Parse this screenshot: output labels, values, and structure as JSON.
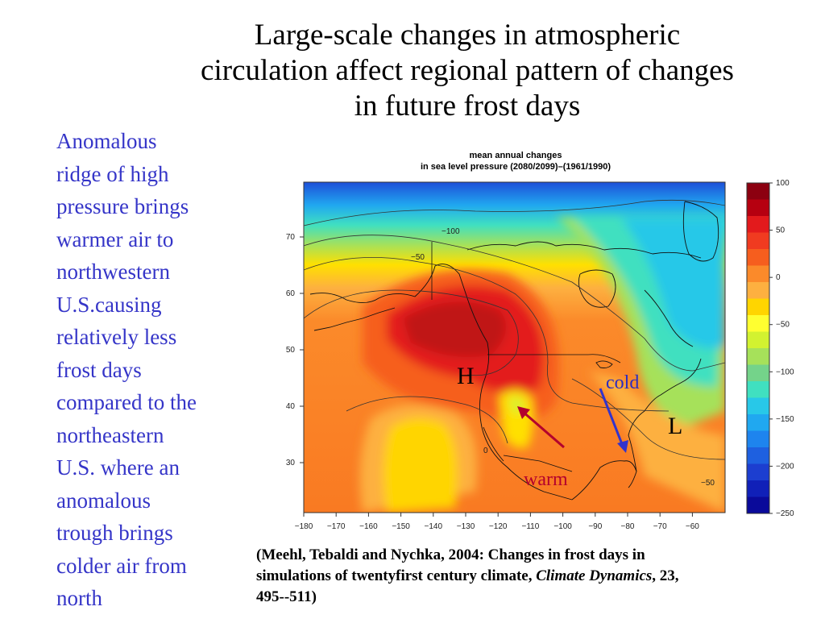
{
  "slide": {
    "title_lines": [
      "Large-scale changes in atmospheric",
      "circulation affect regional pattern of changes",
      "in future frost days"
    ],
    "side_text_lines": [
      "Anomalous",
      "ridge of high",
      "pressure brings",
      "warmer air to",
      "northwestern",
      "U.S.causing",
      "relatively less",
      "frost days",
      "compared to the",
      "northeastern",
      "U.S. where an",
      "anomalous",
      "trough brings",
      "colder air from",
      "north"
    ],
    "citation": {
      "line1": "(Meehl, Tebaldi and Nychka, 2004:  Changes in frost days in",
      "line2_prefix": "simulations of twentyfirst century climate, ",
      "journal": "Climate Dynamics",
      "line2_suffix": ", 23,",
      "line3": "495--511)"
    }
  },
  "map": {
    "title_line1": "mean annual changes",
    "title_line2": "in sea level pressure (2080/2099)–(1961/1990)",
    "lon_ticks": [
      "−180",
      "−170",
      "−160",
      "−150",
      "−140",
      "−130",
      "−120",
      "−110",
      "−100",
      "−90",
      "−80",
      "−70",
      "−60"
    ],
    "lat_ticks": [
      "70",
      "60",
      "50",
      "40",
      "30"
    ],
    "contour_labels": [
      "−100",
      "−50",
      "0",
      "−50"
    ],
    "colorbar": {
      "labels": [
        "100",
        "50",
        "0",
        "−50",
        "−100",
        "−150",
        "−200",
        "−250"
      ],
      "colors": [
        "#8c0010",
        "#b60010",
        "#e31a1c",
        "#f03b20",
        "#f65e1e",
        "#fb8a2a",
        "#fdb040",
        "#ffd500",
        "#ffff30",
        "#d2f230",
        "#a6e15a",
        "#74d38a",
        "#40e0c0",
        "#28c8e8",
        "#20a8f0",
        "#1e84ee",
        "#1e60e0",
        "#1c3ed0",
        "#1020b8",
        "#0a0a9a"
      ]
    },
    "annotations": {
      "high": "H",
      "low": "L",
      "cold": "cold",
      "warm": "warm"
    },
    "arrow_colors": {
      "cold": "#3333cc",
      "warm": "#b3002d"
    }
  }
}
